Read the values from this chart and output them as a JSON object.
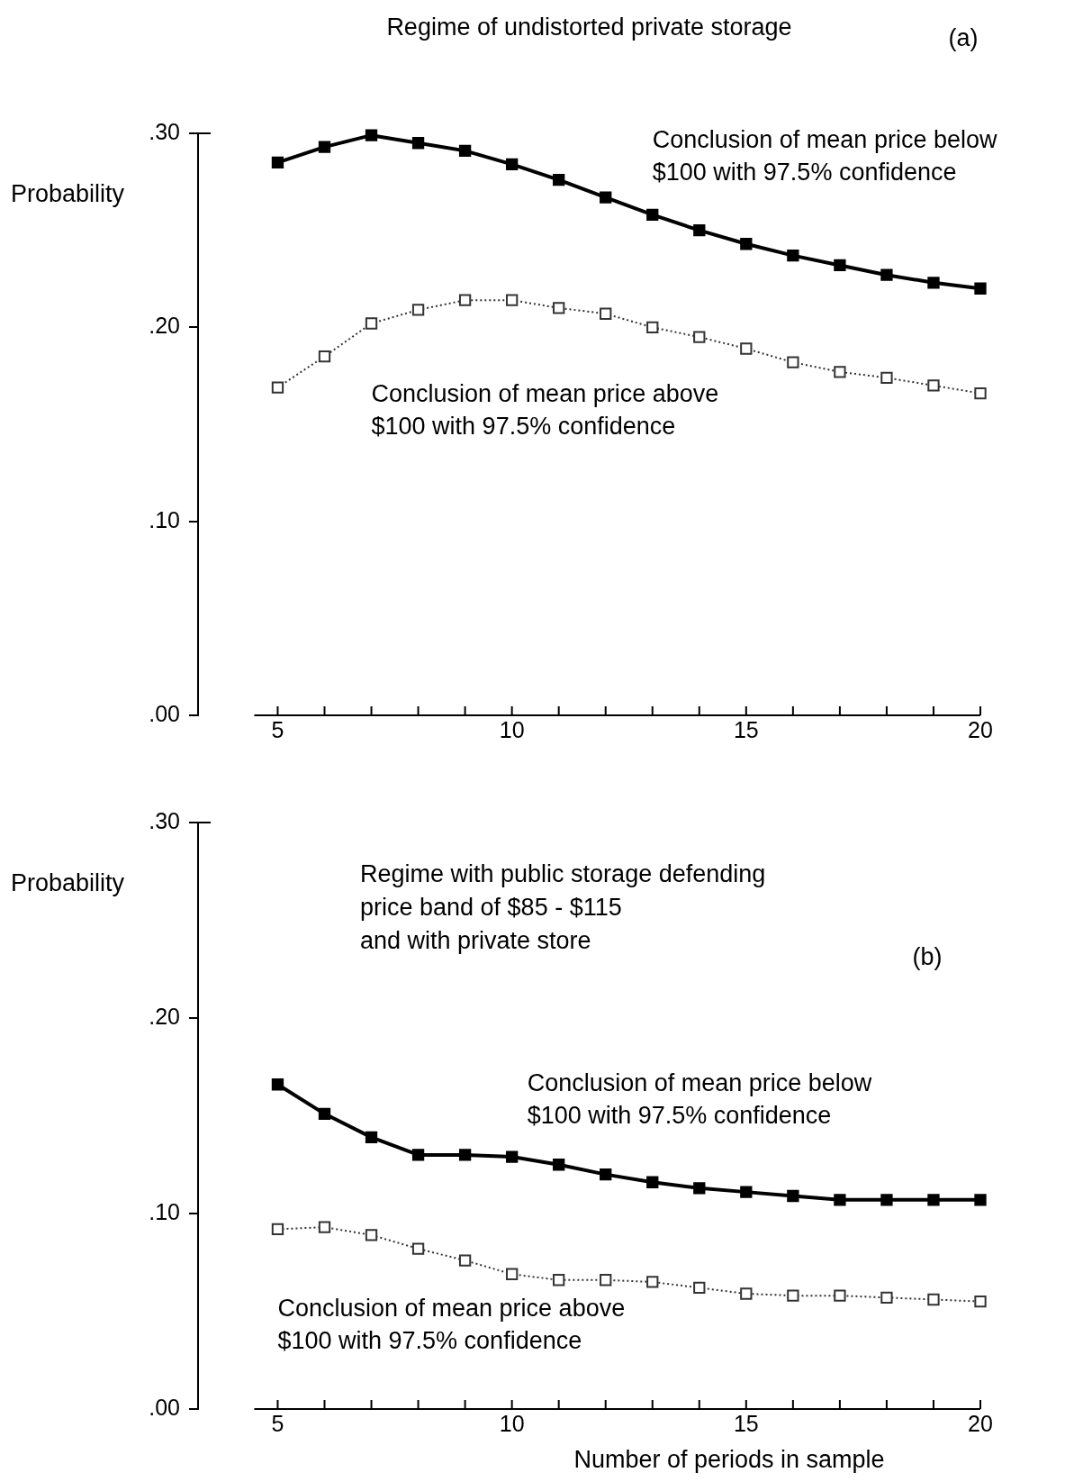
{
  "chart_data": [
    {
      "type": "line",
      "title": "Regime of undistorted private storage",
      "ylabel": "Probability",
      "annotations": [
        "(a)"
      ],
      "x": [
        5,
        6,
        7,
        8,
        9,
        10,
        11,
        12,
        13,
        14,
        15,
        16,
        17,
        18,
        19,
        20
      ],
      "series": [
        {
          "name": "Conclusion of mean price below $100 with 97.5% confidence",
          "color": "#000000",
          "line_style": "solid",
          "values": [
            0.285,
            0.293,
            0.299,
            0.295,
            0.291,
            0.284,
            0.276,
            0.267,
            0.258,
            0.25,
            0.243,
            0.237,
            0.232,
            0.227,
            0.223,
            0.22
          ]
        },
        {
          "name": "Conclusion of mean price above $100 with 97.5% confidence",
          "color": "#333333",
          "line_style": "dotted",
          "values": [
            0.169,
            0.185,
            0.202,
            0.209,
            0.214,
            0.214,
            0.21,
            0.207,
            0.2,
            0.195,
            0.189,
            0.182,
            0.177,
            0.174,
            0.17,
            0.166
          ]
        }
      ],
      "marker": "square",
      "xlim": [
        3.3,
        20
      ],
      "xticks": [
        5,
        {
          "value": 6,
          "label": null
        },
        {
          "value": 7,
          "label": null
        },
        {
          "value": 8,
          "label": null
        },
        {
          "value": 9,
          "label": null
        },
        10,
        {
          "value": 11,
          "label": null
        },
        {
          "value": 12,
          "label": null
        },
        {
          "value": 13,
          "label": null
        },
        {
          "value": 14,
          "label": null
        },
        15,
        {
          "value": 16,
          "label": null
        },
        {
          "value": 17,
          "label": null
        },
        {
          "value": 18,
          "label": null
        },
        {
          "value": 19,
          "label": null
        },
        20
      ],
      "ylim": [
        0,
        0.3
      ],
      "yticks": [
        {
          "value": 0,
          "label": ".00"
        },
        {
          "value": 0.1,
          "label": ".10"
        },
        {
          "value": 0.2,
          "label": ".20"
        },
        {
          "value": 0.3,
          "label": ".30"
        }
      ]
    },
    {
      "type": "line",
      "title": "Regime with public storage defending\nprice band of $85 - $115\nand with private store",
      "ylabel": "Probability",
      "xlabel": "Number of periods in sample",
      "annotations": [
        "(b)"
      ],
      "x": [
        5,
        6,
        7,
        8,
        9,
        10,
        11,
        12,
        13,
        14,
        15,
        16,
        17,
        18,
        19,
        20
      ],
      "series": [
        {
          "name": "Conclusion of mean price below $100 with 97.5% confidence",
          "color": "#000000",
          "line_style": "solid",
          "values": [
            0.166,
            0.151,
            0.139,
            0.13,
            0.13,
            0.129,
            0.125,
            0.12,
            0.116,
            0.113,
            0.111,
            0.109,
            0.107,
            0.107,
            0.107,
            0.107
          ]
        },
        {
          "name": "Conclusion of mean price above $100 with 97.5% confidence",
          "color": "#333333",
          "line_style": "dotted",
          "values": [
            0.092,
            0.093,
            0.089,
            0.082,
            0.076,
            0.069,
            0.066,
            0.066,
            0.065,
            0.062,
            0.059,
            0.058,
            0.058,
            0.057,
            0.056,
            0.055
          ]
        }
      ],
      "marker": "square",
      "xlim": [
        3.3,
        20
      ],
      "xticks": [
        5,
        {
          "value": 6,
          "label": null
        },
        {
          "value": 7,
          "label": null
        },
        {
          "value": 8,
          "label": null
        },
        {
          "value": 9,
          "label": null
        },
        10,
        {
          "value": 11,
          "label": null
        },
        {
          "value": 12,
          "label": null
        },
        {
          "value": 13,
          "label": null
        },
        {
          "value": 14,
          "label": null
        },
        15,
        {
          "value": 16,
          "label": null
        },
        {
          "value": 17,
          "label": null
        },
        {
          "value": 18,
          "label": null
        },
        {
          "value": 19,
          "label": null
        },
        20
      ],
      "ylim": [
        0,
        0.3
      ],
      "yticks": [
        {
          "value": 0,
          "label": ".00"
        },
        {
          "value": 0.1,
          "label": ".10"
        },
        {
          "value": 0.2,
          "label": ".20"
        },
        {
          "value": 0.3,
          "label": ".30"
        }
      ]
    }
  ]
}
